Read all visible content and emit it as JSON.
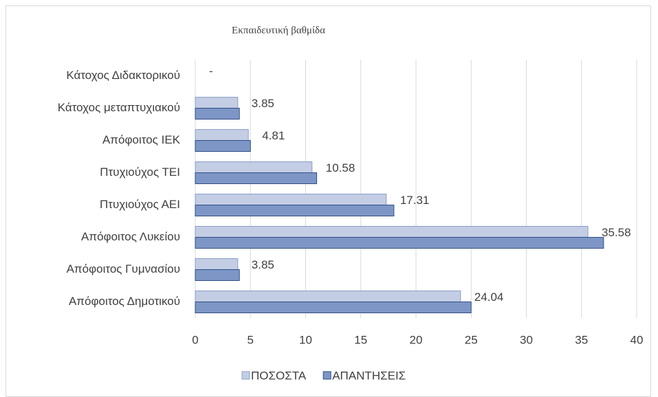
{
  "chart_data": {
    "type": "bar",
    "orientation": "horizontal",
    "title": "Εκπαιδευτική βαθμίδα",
    "categories": [
      "Κάτοχος Διδακτορικού",
      "Κάτοχος μεταπτυχιακού",
      "Απόφοιτος ΙΕΚ",
      "Πτυχιούχος ΤΕΙ",
      "Πτυχιούχος ΑΕΙ",
      "Απόφοιτος Λυκείου",
      "Απόφοιτος Γυμνασίου",
      "Απόφοιτος Δημοτικού"
    ],
    "series": [
      {
        "name": "ΠΟΣΟΣΤΑ",
        "color": "#c3cde4",
        "values": [
          0,
          3.85,
          4.81,
          10.58,
          17.31,
          35.58,
          3.85,
          24.04
        ],
        "value_labels": [
          "-",
          "3.85",
          "4.81",
          "10.58",
          "17.31",
          "35.58",
          "3.85",
          "24.04"
        ]
      },
      {
        "name": "ΑΠΑΝΤΗΣΕΙΣ",
        "color": "#7e96c6",
        "values": [
          0,
          4,
          5,
          11,
          18,
          37,
          4,
          25
        ]
      }
    ],
    "xlim": [
      0,
      40
    ],
    "xticks": [
      0,
      5,
      10,
      15,
      20,
      25,
      30,
      35,
      40
    ],
    "grid": true,
    "legend": "bottom"
  }
}
